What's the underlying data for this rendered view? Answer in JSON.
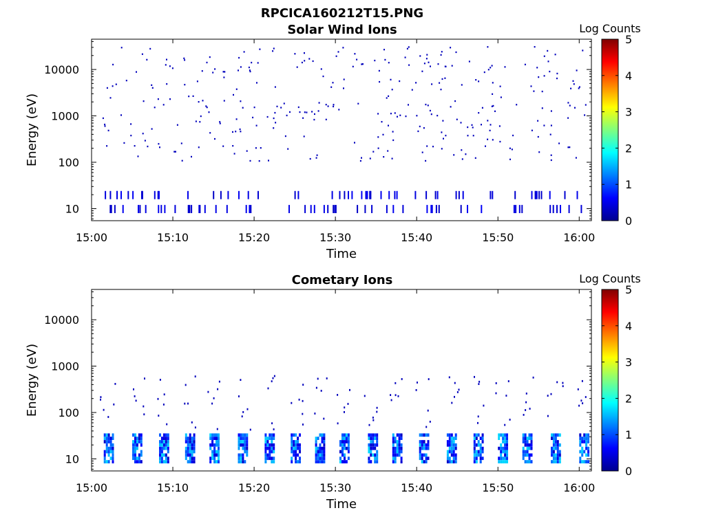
{
  "figure_title": "RPCICA160212T15.PNG",
  "colorbar_ticks": [
    "0",
    "1",
    "2",
    "3",
    "4",
    "5"
  ],
  "colorbar_label": "Log Counts",
  "chart_data": [
    {
      "type": "heatmap",
      "title": "Solar Wind Ions",
      "xlabel": "Time",
      "ylabel": "Energy (eV)",
      "x_ticks": [
        "15:00",
        "15:10",
        "15:20",
        "15:30",
        "15:40",
        "15:50",
        "16:00"
      ],
      "xlim_minutes_after_1500": [
        0,
        61.5
      ],
      "y_ticks": [
        "10",
        "100",
        "1000",
        "10000"
      ],
      "y_scale": "log",
      "ylim": [
        5.5,
        45000
      ],
      "color_scale": "jet",
      "clim": [
        0,
        5
      ],
      "dense_bands_eV": [
        [
          16,
          24
        ],
        [
          8,
          12
        ]
      ],
      "sparse_spread_eV": [
        100,
        30000
      ],
      "peak_log_counts": 0.5
    },
    {
      "type": "heatmap",
      "title": "Cometary Ions",
      "xlabel": "Time",
      "ylabel": "Energy (eV)",
      "x_ticks": [
        "15:00",
        "15:10",
        "15:20",
        "15:30",
        "15:40",
        "15:50",
        "16:00"
      ],
      "xlim_minutes_after_1500": [
        0,
        61.5
      ],
      "y_ticks": [
        "10",
        "100",
        "1000",
        "10000"
      ],
      "y_scale": "log",
      "ylim": [
        5.5,
        45000
      ],
      "color_scale": "jet",
      "clim": [
        0,
        5
      ],
      "burst_times_minutes": [
        2.0,
        5.5,
        8.8,
        12.0,
        15.0,
        18.5,
        21.8,
        25.0,
        28.0,
        31.0,
        34.5,
        37.5,
        40.8,
        44.2,
        47.5,
        50.5,
        53.5,
        57.0,
        60.5
      ],
      "burst_energy_eV": [
        8,
        32
      ],
      "peak_log_counts": 1.7
    }
  ]
}
